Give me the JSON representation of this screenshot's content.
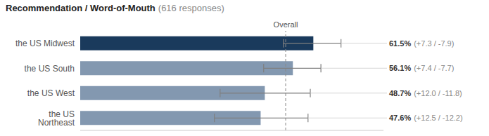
{
  "chart_data": {
    "type": "bar",
    "orientation": "horizontal",
    "title": "Recommendation / Word-of-Mouth",
    "subtitle": "(616 responses)",
    "categories": [
      "the US Midwest",
      "the US South",
      "the US West",
      "the US Northeast"
    ],
    "values": [
      61.5,
      56.1,
      48.7,
      47.6
    ],
    "errors_plus": [
      7.3,
      7.4,
      12.0,
      12.5
    ],
    "errors_minus": [
      7.9,
      7.7,
      11.8,
      12.2
    ],
    "colors": [
      "#1a3a5c",
      "#8398b0",
      "#8398b0",
      "#8398b0"
    ],
    "data_labels": true,
    "value_labels": [
      "61.5%",
      "56.1%",
      "48.7%",
      "47.6%"
    ],
    "error_labels": [
      "(+7.3 / -7.9)",
      "(+7.4 / -7.7)",
      "(+12.0 / -11.8)",
      "(+12.5 / -12.2)"
    ],
    "overall_value": 54.2,
    "overall_label": "Overall",
    "xlim": [
      0,
      80
    ],
    "tick_labels": false,
    "grid": false
  }
}
